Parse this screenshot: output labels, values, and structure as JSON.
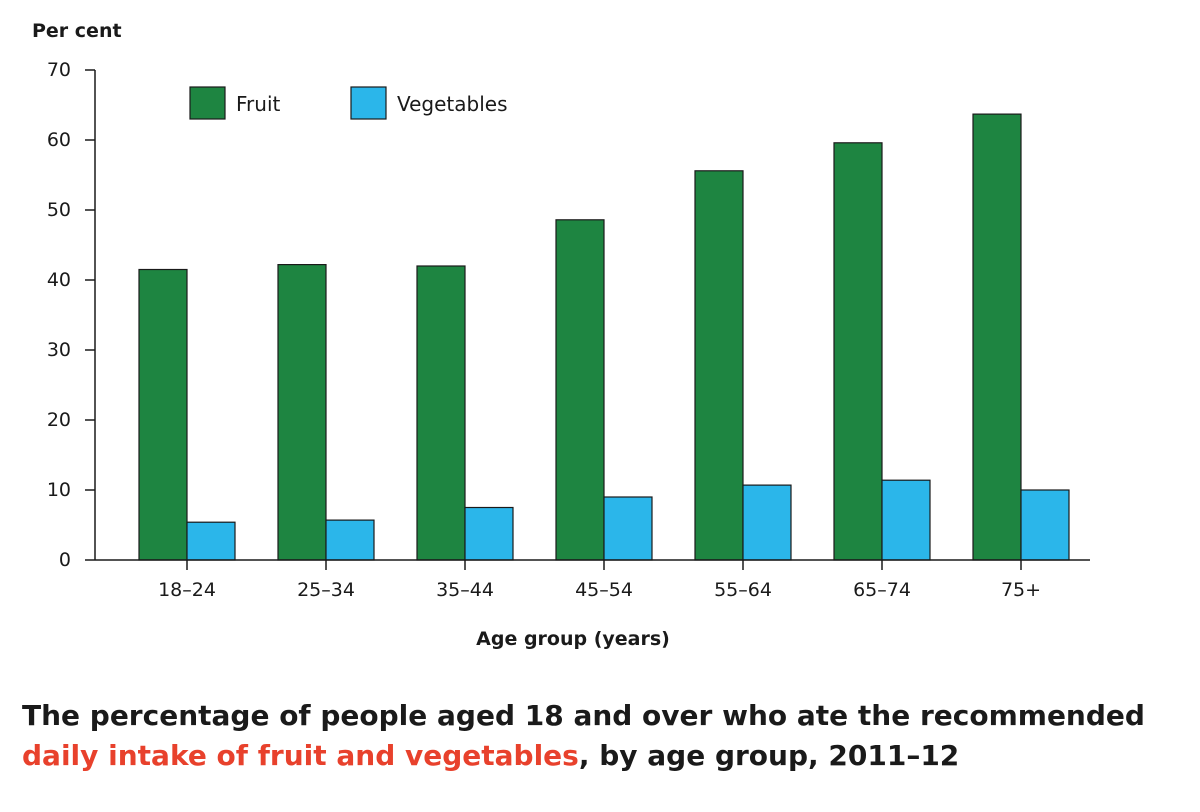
{
  "chart_data": {
    "type": "bar",
    "ylabel": "Per cent",
    "xlabel": "Age group (years)",
    "categories": [
      "18–24",
      "25–34",
      "35–44",
      "45–54",
      "55–64",
      "65–74",
      "75+"
    ],
    "series": [
      {
        "name": "Fruit",
        "values": [
          41.5,
          42.2,
          42.0,
          48.6,
          55.6,
          59.6,
          63.7
        ]
      },
      {
        "name": "Vegetables",
        "values": [
          5.4,
          5.7,
          7.5,
          9.0,
          10.7,
          11.4,
          10.0
        ]
      }
    ],
    "ylim": [
      0,
      70
    ],
    "yticks": [
      0,
      10,
      20,
      30,
      40,
      50,
      60,
      70
    ],
    "grid": false,
    "legend_position": "top-left"
  },
  "colors": {
    "Fruit": "#1e8541",
    "Vegetables": "#2bb6ea",
    "caption_highlight": "#e8412c"
  },
  "caption": {
    "part1": "The percentage of people aged 18 and over who ate the recommended",
    "highlight": "daily intake of fruit and vegetables",
    "part2": ", by age group, 2011–12"
  }
}
